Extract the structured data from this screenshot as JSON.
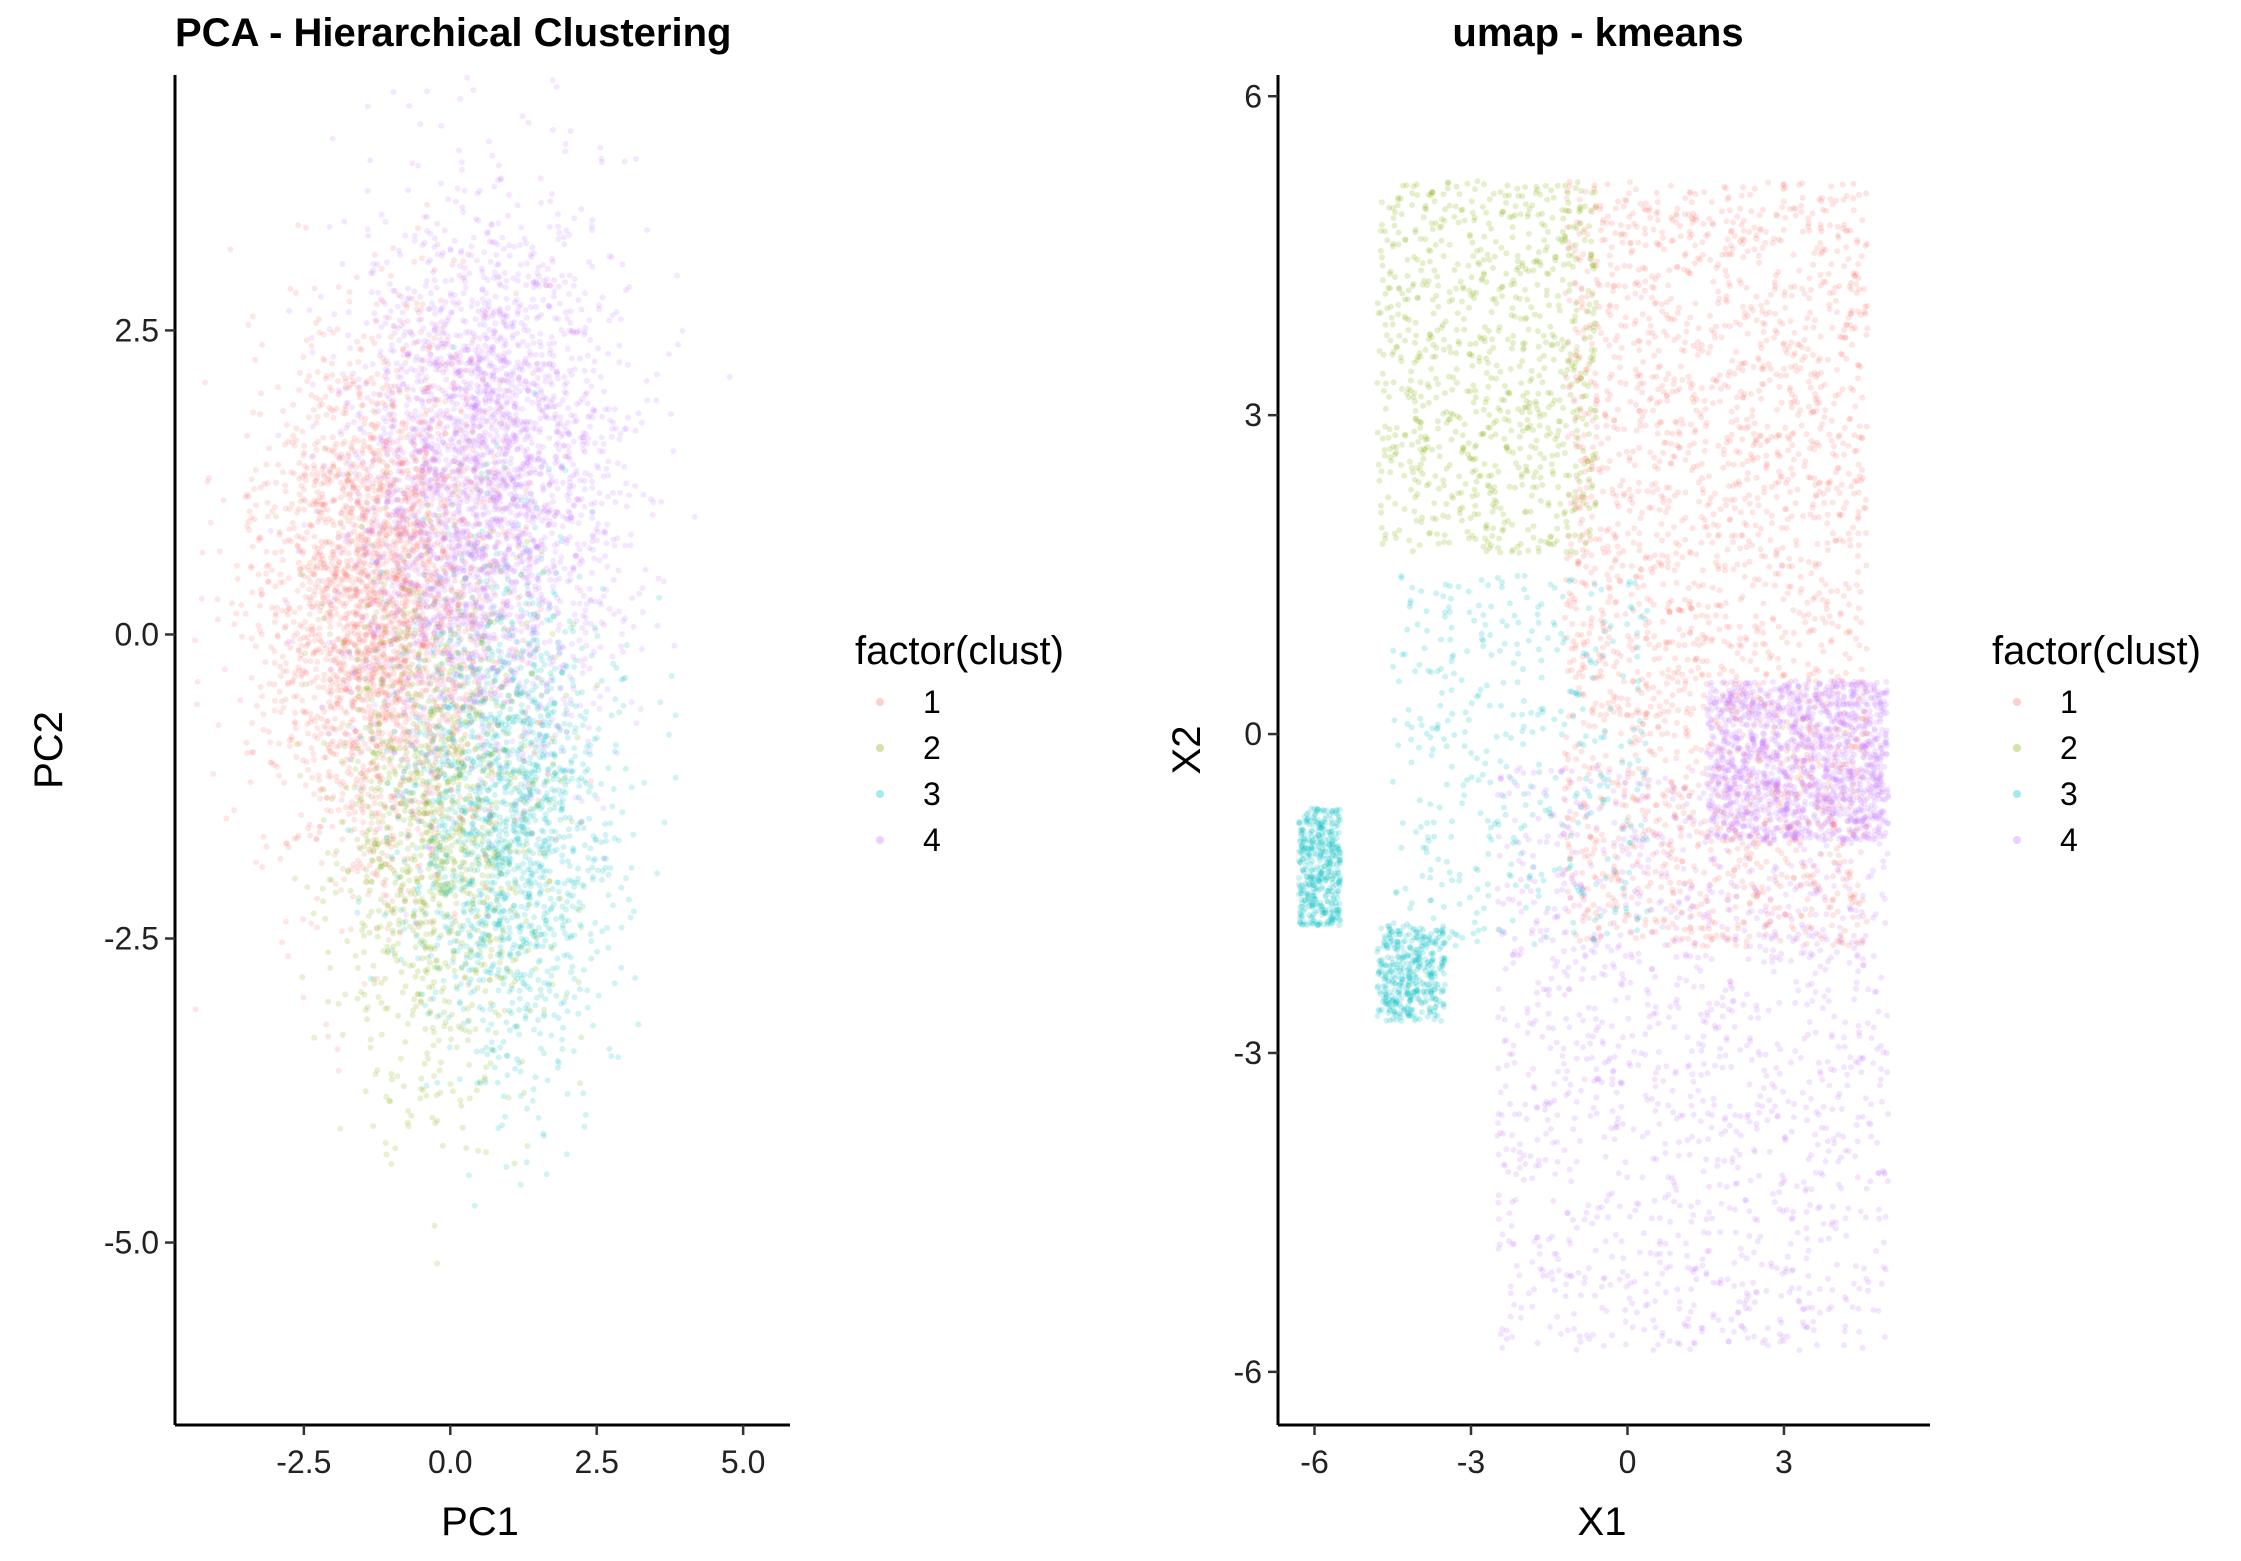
{
  "chart_data": [
    {
      "type": "scatter",
      "title": "PCA - Hierarchical Clustering",
      "xlabel": "PC1",
      "ylabel": "PC2",
      "xlim": [
        -4.7,
        5.8
      ],
      "ylim": [
        -6.5,
        4.6
      ],
      "x_ticks": [
        -2.5,
        0.0,
        2.5,
        5.0
      ],
      "x_tick_labels": [
        "-2.5",
        "0.0",
        "2.5",
        "5.0"
      ],
      "y_ticks": [
        2.5,
        0.0,
        -2.5,
        -5.0
      ],
      "y_tick_labels": [
        "2.5",
        "0.0",
        "-2.5",
        "-5.0"
      ],
      "grid": false,
      "legend": {
        "title": "factor(clust)",
        "placement": "right"
      },
      "point_alpha": 0.18,
      "series": [
        {
          "name": "1",
          "color": "#F8766D",
          "n": 2600,
          "distribution": "gaussian",
          "clusters": [
            {
              "cx": -1.2,
              "cy": 0.3,
              "sx": 1.0,
              "sy": 1.1
            }
          ]
        },
        {
          "name": "2",
          "color": "#7CAE00",
          "n": 1100,
          "distribution": "gaussian",
          "clusters": [
            {
              "cx": -0.2,
              "cy": -1.6,
              "sx": 0.9,
              "sy": 1.1
            }
          ]
        },
        {
          "name": "3",
          "color": "#00BFC4",
          "n": 1500,
          "distribution": "gaussian",
          "clusters": [
            {
              "cx": 1.0,
              "cy": -1.5,
              "sx": 0.85,
              "sy": 1.0
            }
          ]
        },
        {
          "name": "4",
          "color": "#C77CFF",
          "n": 2800,
          "distribution": "gaussian",
          "clusters": [
            {
              "cx": 0.6,
              "cy": 1.3,
              "sx": 1.1,
              "sy": 1.1
            }
          ]
        }
      ]
    },
    {
      "type": "scatter",
      "title": "umap - kmeans",
      "xlabel": "X1",
      "ylabel": "X2",
      "xlim": [
        -6.7,
        5.8
      ],
      "ylim": [
        -6.5,
        6.2
      ],
      "x_ticks": [
        -6,
        -3,
        0,
        3
      ],
      "x_tick_labels": [
        "-6",
        "-3",
        "0",
        "3"
      ],
      "y_ticks": [
        6,
        3,
        0,
        -3,
        -6
      ],
      "y_tick_labels": [
        "6",
        "3",
        "0",
        "-3",
        "-6"
      ],
      "grid": false,
      "legend": {
        "title": "factor(clust)",
        "placement": "right"
      },
      "point_alpha": 0.2,
      "series": [
        {
          "name": "1",
          "color": "#F8766D",
          "n": 2400,
          "distribution": "uniform",
          "regions": [
            {
              "x": [
                -1.2,
                4.6
              ],
              "y": [
                -2.0,
                5.2
              ]
            }
          ]
        },
        {
          "name": "2",
          "color": "#7CAE00",
          "n": 900,
          "distribution": "uniform",
          "regions": [
            {
              "x": [
                -4.8,
                -0.6
              ],
              "y": [
                1.7,
                5.2
              ]
            }
          ]
        },
        {
          "name": "3",
          "color": "#00BFC4",
          "n": 1200,
          "distribution": "uniform",
          "regions": [
            {
              "x": [
                -4.5,
                0.4
              ],
              "y": [
                -2.0,
                1.5
              ]
            },
            {
              "x": [
                -6.3,
                -5.5
              ],
              "y": [
                -1.8,
                -0.7
              ]
            },
            {
              "x": [
                -4.8,
                -3.5
              ],
              "y": [
                -2.7,
                -1.8
              ]
            }
          ]
        },
        {
          "name": "4",
          "color": "#C77CFF",
          "n": 2800,
          "distribution": "uniform",
          "regions": [
            {
              "x": [
                -2.5,
                5.0
              ],
              "y": [
                -5.8,
                -0.3
              ]
            },
            {
              "x": [
                1.5,
                5.0
              ],
              "y": [
                -1.0,
                0.5
              ]
            }
          ]
        }
      ]
    }
  ]
}
